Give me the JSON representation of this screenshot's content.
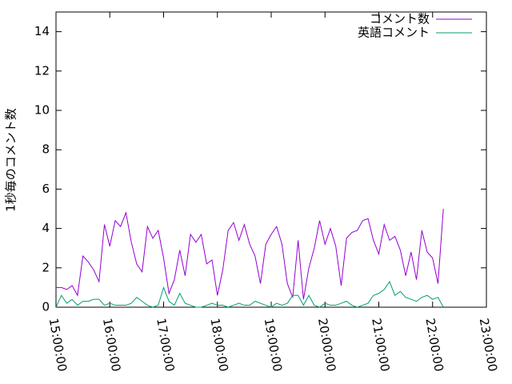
{
  "chart_data": {
    "type": "line",
    "y_label": "1秒毎のコメント数",
    "x": [
      15.0,
      15.1,
      15.2,
      15.3,
      15.4,
      15.5,
      15.6,
      15.7,
      15.8,
      15.9,
      16.0,
      16.1,
      16.2,
      16.3,
      16.4,
      16.5,
      16.6,
      16.7,
      16.8,
      16.9,
      17.0,
      17.1,
      17.2,
      17.3,
      17.4,
      17.5,
      17.6,
      17.7,
      17.8,
      17.9,
      18.0,
      18.1,
      18.2,
      18.3,
      18.4,
      18.5,
      18.6,
      18.7,
      18.8,
      18.9,
      19.0,
      19.1,
      19.2,
      19.3,
      19.4,
      19.5,
      19.6,
      19.7,
      19.8,
      19.9,
      20.0,
      20.1,
      20.2,
      20.3,
      20.4,
      20.5,
      20.6,
      20.7,
      20.8,
      20.9,
      21.0,
      21.1,
      21.2,
      21.3,
      21.4,
      21.5,
      21.6,
      21.7,
      21.8,
      21.9,
      22.0,
      22.1,
      22.2
    ],
    "series": [
      {
        "name": "コメント数",
        "color": "#9400d3",
        "values": [
          1.0,
          1.0,
          0.9,
          1.1,
          0.6,
          2.6,
          2.3,
          1.9,
          1.3,
          4.2,
          3.1,
          4.4,
          4.1,
          4.8,
          3.3,
          2.2,
          1.8,
          4.1,
          3.5,
          3.9,
          2.5,
          0.7,
          1.4,
          2.9,
          1.6,
          3.7,
          3.3,
          3.7,
          2.2,
          2.4,
          0.6,
          1.9,
          3.9,
          4.3,
          3.4,
          4.2,
          3.2,
          2.6,
          1.2,
          3.2,
          3.7,
          4.1,
          3.2,
          1.2,
          0.5,
          3.4,
          0.4,
          2.0,
          3.0,
          4.4,
          3.2,
          4.0,
          3.1,
          1.1,
          3.5,
          3.8,
          3.9,
          4.4,
          4.5,
          3.4,
          2.7,
          4.2,
          3.4,
          3.6,
          2.9,
          1.6,
          2.8,
          1.4,
          3.9,
          2.8,
          2.5,
          1.2,
          5.0
        ]
      },
      {
        "name": "英語コメント",
        "color": "#009e73",
        "values": [
          0.0,
          0.6,
          0.2,
          0.4,
          0.1,
          0.3,
          0.3,
          0.4,
          0.4,
          0.1,
          0.2,
          0.1,
          0.1,
          0.1,
          0.2,
          0.5,
          0.3,
          0.1,
          0.0,
          0.1,
          1.0,
          0.3,
          0.1,
          0.7,
          0.2,
          0.1,
          0.0,
          0.0,
          0.1,
          0.2,
          0.1,
          0.1,
          0.0,
          0.1,
          0.2,
          0.1,
          0.1,
          0.3,
          0.2,
          0.1,
          0.0,
          0.2,
          0.1,
          0.2,
          0.6,
          0.6,
          0.1,
          0.6,
          0.1,
          0.0,
          0.2,
          0.1,
          0.1,
          0.2,
          0.3,
          0.1,
          0.0,
          0.1,
          0.2,
          0.6,
          0.7,
          0.9,
          1.3,
          0.6,
          0.8,
          0.5,
          0.4,
          0.3,
          0.5,
          0.6,
          0.4,
          0.5,
          0.0
        ]
      }
    ],
    "xlim": [
      15,
      23
    ],
    "xticks": [
      {
        "value": 15,
        "label": "15:00:00"
      },
      {
        "value": 16,
        "label": "16:00:00"
      },
      {
        "value": 17,
        "label": "17:00:00"
      },
      {
        "value": 18,
        "label": "18:00:00"
      },
      {
        "value": 19,
        "label": "19:00:00"
      },
      {
        "value": 20,
        "label": "20:00:00"
      },
      {
        "value": 21,
        "label": "21:00:00"
      },
      {
        "value": 22,
        "label": "22:00:00"
      },
      {
        "value": 23,
        "label": "23:00:00"
      }
    ],
    "ylim": [
      0,
      15
    ],
    "yticks": [
      0,
      2,
      4,
      6,
      8,
      10,
      12,
      14
    ],
    "legend": "top-right"
  }
}
